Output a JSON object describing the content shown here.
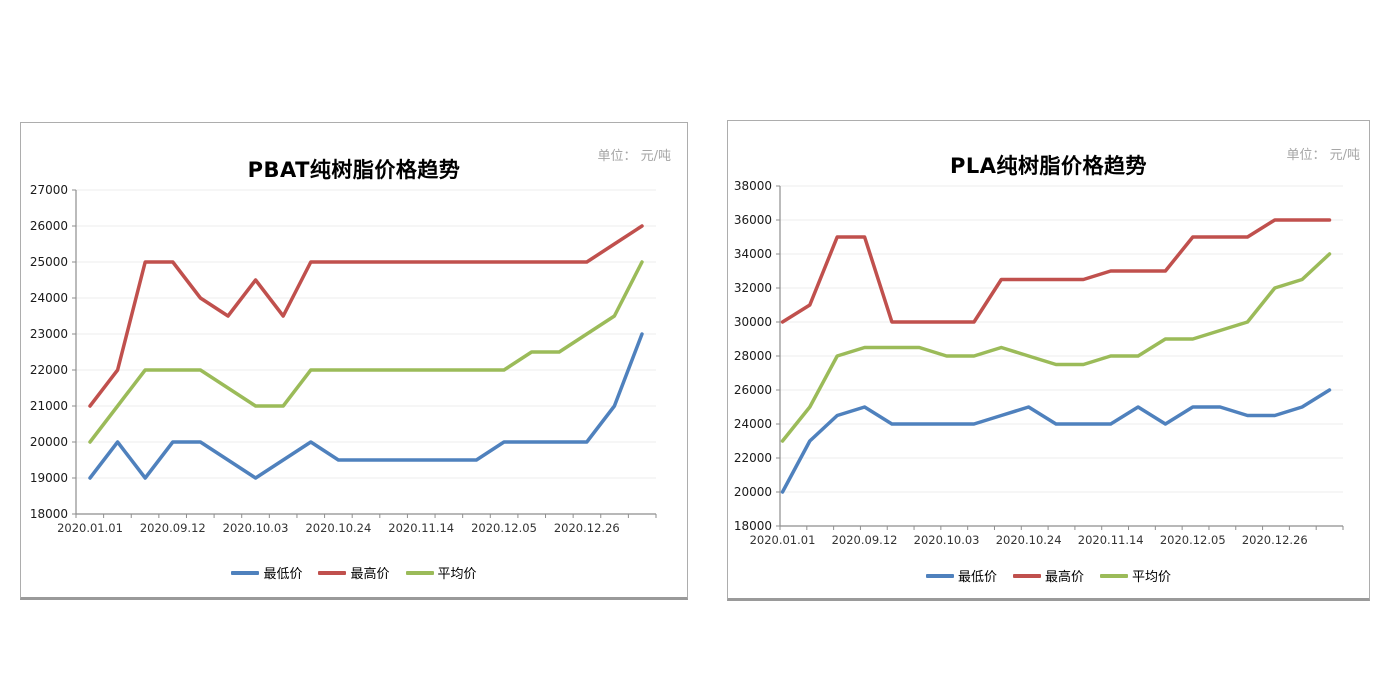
{
  "style": {
    "series_blue": "#4F81BD",
    "series_red": "#C0504D",
    "series_green": "#9BBB59",
    "grid_color": "#ececec",
    "axis_color": "#8e8e8e",
    "tick_label_color": "#333333",
    "title_color": "#000000",
    "unit_color": "#a6a6a6",
    "panel_border": "#adadad"
  },
  "chart_data": [
    {
      "type": "line",
      "title": "PBAT纯树脂价格趋势",
      "unit_label": "单位： 元/吨",
      "n_points": 21,
      "x_tick_labels": [
        "2020.01.01",
        "2020.09.12",
        "2020.10.03",
        "2020.10.24",
        "2020.11.14",
        "2020.12.05",
        "2020.12.26"
      ],
      "x_tick_point_indices": [
        0,
        3,
        6,
        9,
        12,
        15,
        18
      ],
      "ylim": [
        18000,
        27000
      ],
      "y_step": 1000,
      "y_tick_labels": [
        "27000",
        "26000",
        "25000",
        "24000",
        "23000",
        "22000",
        "21000",
        "20000",
        "19000",
        "18000"
      ],
      "grid": true,
      "legend_position": "bottom",
      "series": [
        {
          "name": "最低价",
          "color": "#4F81BD",
          "values": [
            19000,
            20000,
            19000,
            20000,
            20000,
            19500,
            19000,
            19500,
            20000,
            19500,
            19500,
            19500,
            19500,
            19500,
            19500,
            20000,
            20000,
            20000,
            20000,
            21000,
            23000
          ]
        },
        {
          "name": "最高价",
          "color": "#C0504D",
          "values": [
            21000,
            22000,
            25000,
            25000,
            24000,
            23500,
            24500,
            23500,
            25000,
            25000,
            25000,
            25000,
            25000,
            25000,
            25000,
            25000,
            25000,
            25000,
            25000,
            25500,
            26000
          ]
        },
        {
          "name": "平均价",
          "color": "#9BBB59",
          "values": [
            20000,
            21000,
            22000,
            22000,
            22000,
            21500,
            21000,
            21000,
            22000,
            22000,
            22000,
            22000,
            22000,
            22000,
            22000,
            22000,
            22500,
            22500,
            23000,
            23500,
            25000
          ]
        }
      ]
    },
    {
      "type": "line",
      "title": "PLA纯树脂价格趋势",
      "unit_label": "单位： 元/吨",
      "n_points": 21,
      "x_tick_labels": [
        "2020.01.01",
        "2020.09.12",
        "2020.10.03",
        "2020.10.24",
        "2020.11.14",
        "2020.12.05",
        "2020.12.26"
      ],
      "x_tick_point_indices": [
        0,
        3,
        6,
        9,
        12,
        15,
        18
      ],
      "ylim": [
        18000,
        38000
      ],
      "y_step": 2000,
      "y_tick_labels": [
        "38000",
        "36000",
        "34000",
        "32000",
        "30000",
        "28000",
        "26000",
        "24000",
        "22000",
        "20000",
        "18000"
      ],
      "grid": true,
      "legend_position": "bottom",
      "series": [
        {
          "name": "最低价",
          "color": "#4F81BD",
          "values": [
            20000,
            23000,
            24500,
            25000,
            24000,
            24000,
            24000,
            24000,
            24500,
            25000,
            24000,
            24000,
            24000,
            25000,
            24000,
            25000,
            25000,
            24500,
            24500,
            25000,
            26000
          ]
        },
        {
          "name": "最高价",
          "color": "#C0504D",
          "values": [
            30000,
            31000,
            35000,
            35000,
            30000,
            30000,
            30000,
            30000,
            32500,
            32500,
            32500,
            32500,
            33000,
            33000,
            33000,
            35000,
            35000,
            35000,
            36000,
            36000,
            36000
          ]
        },
        {
          "name": "平均价",
          "color": "#9BBB59",
          "values": [
            23000,
            25000,
            28000,
            28500,
            28500,
            28500,
            28000,
            28000,
            28500,
            28000,
            27500,
            27500,
            28000,
            28000,
            29000,
            29000,
            29500,
            30000,
            32000,
            32500,
            34000
          ]
        }
      ]
    }
  ]
}
